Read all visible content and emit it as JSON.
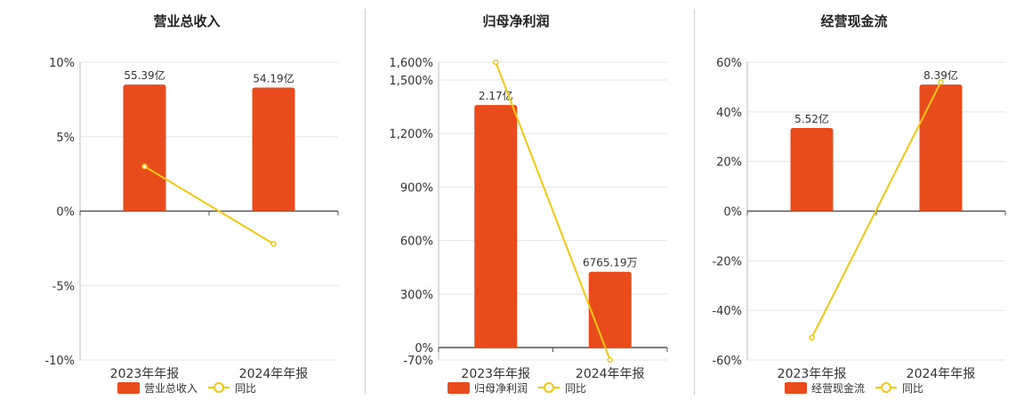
{
  "chart_data": [
    {
      "type": "bar",
      "title": "营业总收入",
      "categories": [
        "2023年年报",
        "2024年年报"
      ],
      "series": [
        {
          "name": "营业总收入",
          "kind": "bar",
          "labels": [
            "55.39亿",
            "54.19亿"
          ]
        },
        {
          "name": "同比",
          "kind": "line",
          "values": [
            3.0,
            -2.2
          ]
        }
      ],
      "ylim": [
        -10,
        10
      ],
      "yticks": [
        10,
        5,
        0,
        -5,
        -10
      ],
      "ytick_labels": [
        "10%",
        "5%",
        "0%",
        "-5%",
        "-10%"
      ],
      "bar_heights": [
        8.5,
        8.3
      ],
      "colors": {
        "bar": "#E84C1C",
        "line": "#F2C811"
      }
    },
    {
      "type": "bar",
      "title": "归母净利润",
      "categories": [
        "2023年年报",
        "2024年年报"
      ],
      "series": [
        {
          "name": "归母净利润",
          "kind": "bar",
          "labels": [
            "2.17亿",
            "6765.19万"
          ]
        },
        {
          "name": "同比",
          "kind": "line",
          "values": [
            1600,
            -70
          ]
        }
      ],
      "ylim": [
        -70,
        1600
      ],
      "yticks": [
        1600,
        1500,
        1200,
        900,
        600,
        300,
        0,
        -70
      ],
      "ytick_labels": [
        "1,600%",
        "1,500%",
        "1,200%",
        "900%",
        "600%",
        "300%",
        "0%",
        "-70%"
      ],
      "bar_heights": [
        1360,
        425
      ],
      "colors": {
        "bar": "#E84C1C",
        "line": "#F2C811"
      }
    },
    {
      "type": "bar",
      "title": "经营现金流",
      "categories": [
        "2023年年报",
        "2024年年报"
      ],
      "series": [
        {
          "name": "经营现金流",
          "kind": "bar",
          "labels": [
            "5.52亿",
            "8.39亿"
          ]
        },
        {
          "name": "同比",
          "kind": "line",
          "values": [
            -51,
            52
          ]
        }
      ],
      "ylim": [
        -60,
        60
      ],
      "yticks": [
        60,
        40,
        20,
        0,
        -20,
        -40,
        -60
      ],
      "ytick_labels": [
        "60%",
        "40%",
        "20%",
        "0%",
        "-20%",
        "-40%",
        "-60%"
      ],
      "bar_heights": [
        33.5,
        51
      ],
      "colors": {
        "bar": "#E84C1C",
        "line": "#F2C811"
      }
    }
  ]
}
